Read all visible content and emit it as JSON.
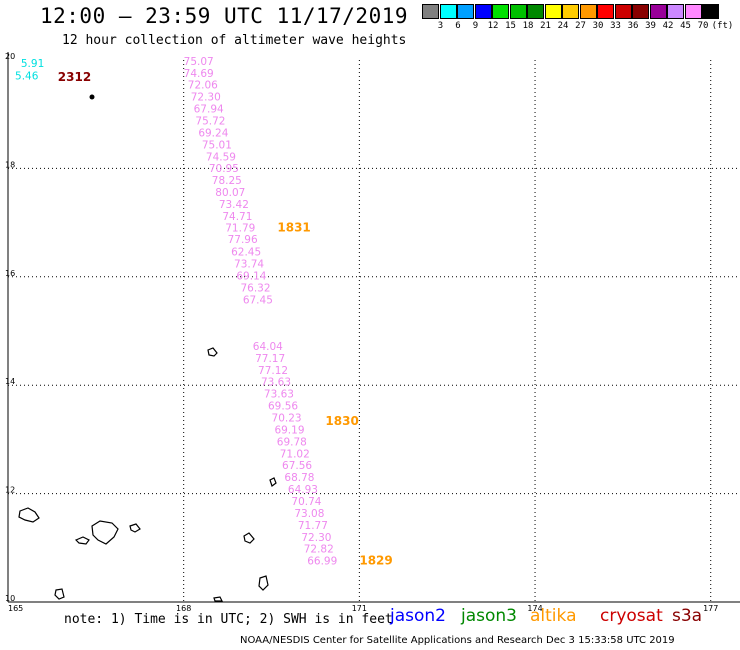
{
  "title": "12:00 – 23:59 UTC 11/17/2019",
  "subtitle": "12 hour collection of altimeter wave heights",
  "colorbar": {
    "unit_label": "(ft)",
    "bins": [
      {
        "label": "",
        "color": "#808080"
      },
      {
        "label": "3",
        "color": "#00ffff"
      },
      {
        "label": "6",
        "color": "#00a0ff"
      },
      {
        "label": "9",
        "color": "#0000ff"
      },
      {
        "label": "12",
        "color": "#00e000"
      },
      {
        "label": "15",
        "color": "#00c000"
      },
      {
        "label": "18",
        "color": "#008800"
      },
      {
        "label": "21",
        "color": "#ffff00"
      },
      {
        "label": "24",
        "color": "#ffcc00"
      },
      {
        "label": "27",
        "color": "#ff9900"
      },
      {
        "label": "30",
        "color": "#ff0000"
      },
      {
        "label": "33",
        "color": "#cc0000"
      },
      {
        "label": "36",
        "color": "#880000"
      },
      {
        "label": "39",
        "color": "#990099"
      },
      {
        "label": "42",
        "color": "#cc88ff"
      },
      {
        "label": "45",
        "color": "#ff88ff"
      },
      {
        "label": "70",
        "color": "#000000"
      }
    ]
  },
  "map": {
    "lon_range": [
      165,
      177.5
    ],
    "lat_range": [
      10,
      20
    ],
    "lon_ticks": [
      {
        "value": 165,
        "label": "165"
      },
      {
        "value": 168,
        "label": "168"
      },
      {
        "value": 171,
        "label": "171"
      },
      {
        "value": 174,
        "label": "174"
      },
      {
        "value": 177,
        "label": "177"
      }
    ],
    "lat_ticks": [
      {
        "value": 20,
        "label": "20"
      },
      {
        "value": 18,
        "label": "18"
      },
      {
        "value": 16,
        "label": "16"
      },
      {
        "value": 14,
        "label": "14"
      },
      {
        "value": 12,
        "label": "12"
      },
      {
        "value": 10,
        "label": "10"
      }
    ],
    "gridlines": true
  },
  "observations": [
    {
      "lon": 165.22,
      "lat": 19.87,
      "value": "5.91",
      "color": "#00e0e0"
    },
    {
      "lon": 165.12,
      "lat": 19.64,
      "value": "5.46",
      "color": "#00e0e0"
    },
    {
      "lon": 168.0,
      "lat": 19.91,
      "value": "75.07",
      "color": "#ee88ee"
    },
    {
      "lon": 168.0,
      "lat": 19.69,
      "value": "74.69",
      "color": "#ee88ee"
    },
    {
      "lon": 168.07,
      "lat": 19.47,
      "value": "72.06",
      "color": "#ee88ee"
    },
    {
      "lon": 168.12,
      "lat": 19.25,
      "value": "72.30",
      "color": "#ee88ee"
    },
    {
      "lon": 168.17,
      "lat": 19.03,
      "value": "67.94",
      "color": "#ee88ee"
    },
    {
      "lon": 168.2,
      "lat": 18.81,
      "value": "75.72",
      "color": "#ee88ee"
    },
    {
      "lon": 168.25,
      "lat": 18.59,
      "value": "69.24",
      "color": "#ee88ee"
    },
    {
      "lon": 168.31,
      "lat": 18.37,
      "value": "75.01",
      "color": "#ee88ee"
    },
    {
      "lon": 168.38,
      "lat": 18.15,
      "value": "74.59",
      "color": "#ee88ee"
    },
    {
      "lon": 168.43,
      "lat": 17.93,
      "value": "70.95",
      "color": "#ee88ee"
    },
    {
      "lon": 168.48,
      "lat": 17.71,
      "value": "78.25",
      "color": "#ee88ee"
    },
    {
      "lon": 168.54,
      "lat": 17.49,
      "value": "80.07",
      "color": "#ee88ee"
    },
    {
      "lon": 168.6,
      "lat": 17.27,
      "value": "73.42",
      "color": "#ee88ee"
    },
    {
      "lon": 168.66,
      "lat": 17.05,
      "value": "74.71",
      "color": "#ee88ee"
    },
    {
      "lon": 168.71,
      "lat": 16.84,
      "value": "71.79",
      "color": "#ee88ee"
    },
    {
      "lon": 168.75,
      "lat": 16.62,
      "value": "77.96",
      "color": "#ee88ee"
    },
    {
      "lon": 168.81,
      "lat": 16.39,
      "value": "62.45",
      "color": "#ee88ee"
    },
    {
      "lon": 168.86,
      "lat": 16.17,
      "value": "73.74",
      "color": "#ee88ee"
    },
    {
      "lon": 168.9,
      "lat": 15.95,
      "value": "69.14",
      "color": "#ee88ee"
    },
    {
      "lon": 168.97,
      "lat": 15.73,
      "value": "76.32",
      "color": "#ee88ee"
    },
    {
      "lon": 169.01,
      "lat": 15.51,
      "value": "67.45",
      "color": "#ee88ee"
    },
    {
      "lon": 169.18,
      "lat": 14.65,
      "value": "64.04",
      "color": "#ee88ee"
    },
    {
      "lon": 169.22,
      "lat": 14.43,
      "value": "77.17",
      "color": "#ee88ee"
    },
    {
      "lon": 169.27,
      "lat": 14.21,
      "value": "77.12",
      "color": "#ee88ee"
    },
    {
      "lon": 169.32,
      "lat": 13.99,
      "value": "73.63",
      "color": "#ee88ee"
    },
    {
      "lon": 169.37,
      "lat": 13.77,
      "value": "73.63",
      "color": "#ee88ee"
    },
    {
      "lon": 169.44,
      "lat": 13.55,
      "value": "69.56",
      "color": "#ee88ee"
    },
    {
      "lon": 169.5,
      "lat": 13.33,
      "value": "70.23",
      "color": "#ee88ee"
    },
    {
      "lon": 169.55,
      "lat": 13.11,
      "value": "69.19",
      "color": "#ee88ee"
    },
    {
      "lon": 169.59,
      "lat": 12.89,
      "value": "69.78",
      "color": "#ee88ee"
    },
    {
      "lon": 169.64,
      "lat": 12.67,
      "value": "71.02",
      "color": "#ee88ee"
    },
    {
      "lon": 169.68,
      "lat": 12.45,
      "value": "67.56",
      "color": "#ee88ee"
    },
    {
      "lon": 169.72,
      "lat": 12.23,
      "value": "68.78",
      "color": "#ee88ee"
    },
    {
      "lon": 169.78,
      "lat": 12.01,
      "value": "64.93",
      "color": "#ee88ee"
    },
    {
      "lon": 169.84,
      "lat": 11.79,
      "value": "70.74",
      "color": "#ee88ee"
    },
    {
      "lon": 169.89,
      "lat": 11.57,
      "value": "73.08",
      "color": "#ee88ee"
    },
    {
      "lon": 169.95,
      "lat": 11.35,
      "value": "71.77",
      "color": "#ee88ee"
    },
    {
      "lon": 170.01,
      "lat": 11.13,
      "value": "72.30",
      "color": "#ee88ee"
    },
    {
      "lon": 170.05,
      "lat": 10.91,
      "value": "72.82",
      "color": "#ee88ee"
    },
    {
      "lon": 170.11,
      "lat": 10.69,
      "value": "66.99",
      "color": "#ee88ee"
    }
  ],
  "pass_labels": [
    {
      "lon": 165.85,
      "lat": 19.61,
      "value": "2312",
      "color": "#880000"
    },
    {
      "lon": 169.6,
      "lat": 16.84,
      "value": "1831",
      "color": "#ff9900"
    },
    {
      "lon": 170.42,
      "lat": 13.27,
      "value": "1830",
      "color": "#ff9900"
    },
    {
      "lon": 171.0,
      "lat": 10.69,
      "value": "1829",
      "color": "#ff9900"
    }
  ],
  "footer": {
    "note": "note: 1) Time is in UTC; 2) SWH is in feet",
    "credit": "NOAA/NESDIS Center for Satellite Applications and Research   Dec  3 15:33:58 UTC 2019"
  },
  "satellites": [
    {
      "name": "jason2",
      "color": "#0000ff"
    },
    {
      "name": "jason3",
      "color": "#008800"
    },
    {
      "name": "altika",
      "color": "#ff9900"
    },
    {
      "name": "cryosat",
      "color": "#cc0000"
    },
    {
      "name": "s3a",
      "color": "#880000"
    }
  ]
}
